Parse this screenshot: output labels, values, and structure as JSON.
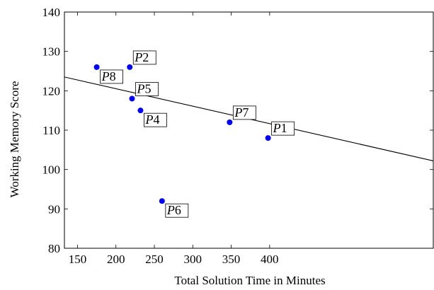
{
  "chart_data": {
    "type": "scatter",
    "title": "",
    "xlabel": "Total Solution Time in Minutes",
    "ylabel": "Working Memory Score",
    "xlim": [
      133,
      613
    ],
    "ylim": [
      80,
      140
    ],
    "xticks": [
      150,
      200,
      250,
      300,
      350,
      400
    ],
    "yticks": [
      80,
      90,
      100,
      110,
      120,
      130,
      140
    ],
    "grid": false,
    "point_color": "#0000ff",
    "points": [
      {
        "label": "P1",
        "x": 398,
        "y": 108,
        "label_side": "above-right"
      },
      {
        "label": "P2",
        "x": 218,
        "y": 126,
        "label_side": "above-right"
      },
      {
        "label": "P4",
        "x": 232,
        "y": 115,
        "label_side": "below-right"
      },
      {
        "label": "P5",
        "x": 221,
        "y": 118,
        "label_side": "above-right"
      },
      {
        "label": "P6",
        "x": 260,
        "y": 92,
        "label_side": "below-right"
      },
      {
        "label": "P7",
        "x": 348,
        "y": 112,
        "label_side": "above-right"
      },
      {
        "label": "P8",
        "x": 175,
        "y": 126,
        "label_side": "below-right"
      }
    ],
    "trendline": {
      "x": [
        133,
        613
      ],
      "y": [
        123.5,
        102.2
      ]
    }
  }
}
